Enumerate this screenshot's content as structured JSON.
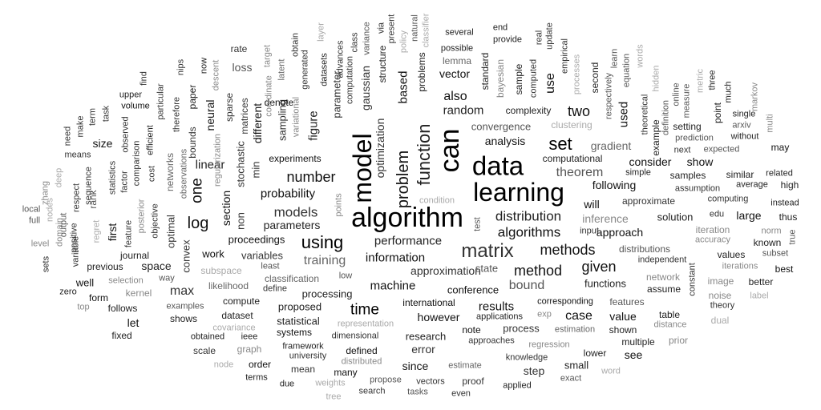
{
  "words": [
    {
      "text": "algorithm",
      "tone": "#000000"
    },
    {
      "text": "data",
      "tone": "#000000"
    },
    {
      "text": "learning",
      "tone": "#000000"
    },
    {
      "text": "model",
      "tone": "#000000"
    },
    {
      "text": "can",
      "tone": "#000000"
    },
    {
      "text": "matrix",
      "tone": "#333333"
    },
    {
      "text": "function",
      "tone": "#222222"
    },
    {
      "text": "set",
      "tone": "#000000"
    },
    {
      "text": "using",
      "tone": "#000000"
    },
    {
      "text": "problem",
      "tone": "#111111"
    },
    {
      "text": "log",
      "tone": "#111111"
    },
    {
      "text": "time",
      "tone": "#000000"
    },
    {
      "text": "number",
      "tone": "#111111"
    },
    {
      "text": "method",
      "tone": "#111111"
    },
    {
      "text": "methods",
      "tone": "#111111"
    },
    {
      "text": "algorithms",
      "tone": "#111111"
    },
    {
      "text": "distribution",
      "tone": "#222222"
    },
    {
      "text": "given",
      "tone": "#111111"
    },
    {
      "text": "one",
      "tone": "#111111"
    },
    {
      "text": "two",
      "tone": "#111111"
    },
    {
      "text": "models",
      "tone": "#333333"
    },
    {
      "text": "performance",
      "tone": "#222222"
    },
    {
      "text": "information",
      "tone": "#111111"
    },
    {
      "text": "machine",
      "tone": "#111111"
    },
    {
      "text": "results",
      "tone": "#111111"
    },
    {
      "text": "bound",
      "tone": "#555555"
    },
    {
      "text": "training",
      "tone": "#666666"
    },
    {
      "text": "theorem",
      "tone": "#555555"
    },
    {
      "text": "probability",
      "tone": "#111111"
    },
    {
      "text": "linear",
      "tone": "#222222"
    },
    {
      "text": "based",
      "tone": "#111111"
    },
    {
      "text": "also",
      "tone": "#111111"
    },
    {
      "text": "use",
      "tone": "#111111"
    },
    {
      "text": "used",
      "tone": "#111111"
    },
    {
      "text": "case",
      "tone": "#111111"
    },
    {
      "text": "max",
      "tone": "#333333"
    },
    {
      "text": "random",
      "tone": "#222222"
    },
    {
      "text": "approximation",
      "tone": "#333333"
    },
    {
      "text": "approach",
      "tone": "#111111"
    },
    {
      "text": "following",
      "tone": "#111111"
    },
    {
      "text": "parameters",
      "tone": "#222222"
    },
    {
      "text": "figure",
      "tone": "#222222"
    },
    {
      "text": "optimization",
      "tone": "#333333"
    },
    {
      "text": "inference",
      "tone": "#888888"
    },
    {
      "text": "gradient",
      "tone": "#666666"
    },
    {
      "text": "analysis",
      "tone": "#111111"
    },
    {
      "text": "convergence",
      "tone": "#555555"
    },
    {
      "text": "vector",
      "tone": "#111111"
    },
    {
      "text": "first",
      "tone": "#111111"
    },
    {
      "text": "let",
      "tone": "#111111"
    },
    {
      "text": "space",
      "tone": "#222222"
    },
    {
      "text": "value",
      "tone": "#111111"
    },
    {
      "text": "error",
      "tone": "#333333"
    },
    {
      "text": "however",
      "tone": "#111111"
    },
    {
      "text": "will",
      "tone": "#111111"
    },
    {
      "text": "consider",
      "tone": "#111111"
    },
    {
      "text": "show",
      "tone": "#111111"
    },
    {
      "text": "large",
      "tone": "#111111"
    },
    {
      "text": "solution",
      "tone": "#222222"
    },
    {
      "text": "conference",
      "tone": "#111111"
    },
    {
      "text": "proposed",
      "tone": "#222222"
    },
    {
      "text": "since",
      "tone": "#111111"
    },
    {
      "text": "step",
      "tone": "#333333"
    },
    {
      "text": "see",
      "tone": "#111111"
    },
    {
      "text": "gaussian",
      "tone": "#333333"
    },
    {
      "text": "parameter",
      "tone": "#333333"
    },
    {
      "text": "different",
      "tone": "#111111"
    },
    {
      "text": "section",
      "tone": "#111111"
    },
    {
      "text": "loss",
      "tone": "#555555"
    },
    {
      "text": "neural",
      "tone": "#111111"
    },
    {
      "text": "size",
      "tone": "#111111"
    },
    {
      "text": "work",
      "tone": "#111111"
    },
    {
      "text": "variables",
      "tone": "#333333"
    },
    {
      "text": "proceedings",
      "tone": "#111111"
    },
    {
      "text": "well",
      "tone": "#111111"
    },
    {
      "text": "computational",
      "tone": "#222222"
    },
    {
      "text": "process",
      "tone": "#333333"
    },
    {
      "text": "research",
      "tone": "#222222"
    },
    {
      "text": "functions",
      "tone": "#222222"
    },
    {
      "text": "processing",
      "tone": "#222222"
    },
    {
      "text": "state",
      "tone": "#555555"
    },
    {
      "text": "international",
      "tone": "#111111"
    },
    {
      "text": "experiments",
      "tone": "#111111"
    },
    {
      "text": "complexity",
      "tone": "#222222"
    },
    {
      "text": "clustering",
      "tone": "#aaaaaa"
    },
    {
      "text": "sample",
      "tone": "#222222"
    },
    {
      "text": "bayesian",
      "tone": "#888888"
    },
    {
      "text": "standard",
      "tone": "#222222"
    },
    {
      "text": "lemma",
      "tone": "#666666"
    },
    {
      "text": "possible",
      "tone": "#222222"
    },
    {
      "text": "several",
      "tone": "#222222"
    },
    {
      "text": "structure",
      "tone": "#222222"
    },
    {
      "text": "problems",
      "tone": "#222222"
    },
    {
      "text": "datasets",
      "tone": "#222222"
    },
    {
      "text": "sampling",
      "tone": "#333333"
    },
    {
      "text": "variational",
      "tone": "#888888"
    },
    {
      "text": "latent",
      "tone": "#666666"
    },
    {
      "text": "target",
      "tone": "#888888"
    },
    {
      "text": "denote",
      "tone": "#111111"
    },
    {
      "text": "matrices",
      "tone": "#333333"
    },
    {
      "text": "sparse",
      "tone": "#333333"
    },
    {
      "text": "stochastic",
      "tone": "#333333"
    },
    {
      "text": "non",
      "tone": "#333333"
    },
    {
      "text": "min",
      "tone": "#333333"
    },
    {
      "text": "rate",
      "tone": "#333333"
    },
    {
      "text": "paper",
      "tone": "#222222"
    },
    {
      "text": "bounds",
      "tone": "#333333"
    },
    {
      "text": "regularization",
      "tone": "#888888"
    },
    {
      "text": "descent",
      "tone": "#888888"
    },
    {
      "text": "now",
      "tone": "#222222"
    },
    {
      "text": "nips",
      "tone": "#333333"
    },
    {
      "text": "therefore",
      "tone": "#333333"
    },
    {
      "text": "observations",
      "tone": "#666666"
    },
    {
      "text": "networks",
      "tone": "#666666"
    },
    {
      "text": "optimal",
      "tone": "#333333"
    },
    {
      "text": "convex",
      "tone": "#333333"
    },
    {
      "text": "subspace",
      "tone": "#aaaaaa"
    },
    {
      "text": "likelihood",
      "tone": "#666666"
    },
    {
      "text": "compute",
      "tone": "#222222"
    },
    {
      "text": "dataset",
      "tone": "#222222"
    },
    {
      "text": "covariance",
      "tone": "#aaaaaa"
    },
    {
      "text": "graph",
      "tone": "#888888"
    },
    {
      "text": "node",
      "tone": "#aaaaaa"
    },
    {
      "text": "scale",
      "tone": "#333333"
    },
    {
      "text": "obtained",
      "tone": "#222222"
    },
    {
      "text": "shows",
      "tone": "#222222"
    },
    {
      "text": "examples",
      "tone": "#555555"
    },
    {
      "text": "way",
      "tone": "#555555"
    },
    {
      "text": "kernel",
      "tone": "#888888"
    },
    {
      "text": "selection",
      "tone": "#888888"
    },
    {
      "text": "journal",
      "tone": "#222222"
    },
    {
      "text": "previous",
      "tone": "#222222"
    },
    {
      "text": "form",
      "tone": "#111111"
    },
    {
      "text": "follows",
      "tone": "#222222"
    },
    {
      "text": "fixed",
      "tone": "#222222"
    },
    {
      "text": "top",
      "tone": "#888888"
    },
    {
      "text": "zero",
      "tone": "#222222"
    },
    {
      "text": "sets",
      "tone": "#222222"
    },
    {
      "text": "level",
      "tone": "#888888"
    },
    {
      "text": "full",
      "tone": "#555555"
    },
    {
      "text": "local",
      "tone": "#555555"
    },
    {
      "text": "zhang",
      "tone": "#888888"
    },
    {
      "text": "deep",
      "tone": "#aaaaaa"
    },
    {
      "text": "domain",
      "tone": "#888888"
    },
    {
      "text": "nodes",
      "tone": "#aaaaaa"
    },
    {
      "text": "output",
      "tone": "#555555"
    },
    {
      "text": "means",
      "tone": "#333333"
    },
    {
      "text": "need",
      "tone": "#333333"
    },
    {
      "text": "make",
      "tone": "#333333"
    },
    {
      "text": "term",
      "tone": "#333333"
    },
    {
      "text": "task",
      "tone": "#333333"
    },
    {
      "text": "respect",
      "tone": "#333333"
    },
    {
      "text": "positive",
      "tone": "#333333"
    },
    {
      "text": "variable",
      "tone": "#333333"
    },
    {
      "text": "sequence",
      "tone": "#333333"
    },
    {
      "text": "rank",
      "tone": "#555555"
    },
    {
      "text": "regret",
      "tone": "#aaaaaa"
    },
    {
      "text": "statistics",
      "tone": "#333333"
    },
    {
      "text": "observed",
      "tone": "#333333"
    },
    {
      "text": "factor",
      "tone": "#333333"
    },
    {
      "text": "posterior",
      "tone": "#888888"
    },
    {
      "text": "comparison",
      "tone": "#333333"
    },
    {
      "text": "feature",
      "tone": "#333333"
    },
    {
      "text": "upper",
      "tone": "#222222"
    },
    {
      "text": "volume",
      "tone": "#111111"
    },
    {
      "text": "particular",
      "tone": "#333333"
    },
    {
      "text": "efficient",
      "tone": "#222222"
    },
    {
      "text": "cost",
      "tone": "#333333"
    },
    {
      "text": "objective",
      "tone": "#333333"
    },
    {
      "text": "find",
      "tone": "#333333"
    },
    {
      "text": "coordinate",
      "tone": "#888888"
    },
    {
      "text": "generated",
      "tone": "#333333"
    },
    {
      "text": "obtain",
      "tone": "#333333"
    },
    {
      "text": "layer",
      "tone": "#aaaaaa"
    },
    {
      "text": "advances",
      "tone": "#333333"
    },
    {
      "text": "computation",
      "tone": "#333333"
    },
    {
      "text": "class",
      "tone": "#333333"
    },
    {
      "text": "variance",
      "tone": "#555555"
    },
    {
      "text": "via",
      "tone": "#333333"
    },
    {
      "text": "present",
      "tone": "#333333"
    },
    {
      "text": "policy",
      "tone": "#aaaaaa"
    },
    {
      "text": "natural",
      "tone": "#555555"
    },
    {
      "text": "classifier",
      "tone": "#aaaaaa"
    },
    {
      "text": "condition",
      "tone": "#aaaaaa"
    },
    {
      "text": "points",
      "tone": "#888888"
    },
    {
      "text": "test",
      "tone": "#555555"
    },
    {
      "text": "classification",
      "tone": "#666666"
    },
    {
      "text": "least",
      "tone": "#555555"
    },
    {
      "text": "define",
      "tone": "#333333"
    },
    {
      "text": "low",
      "tone": "#555555"
    },
    {
      "text": "statistical",
      "tone": "#222222"
    },
    {
      "text": "systems",
      "tone": "#111111"
    },
    {
      "text": "representation",
      "tone": "#aaaaaa"
    },
    {
      "text": "dimensional",
      "tone": "#333333"
    },
    {
      "text": "framework",
      "tone": "#222222"
    },
    {
      "text": "university",
      "tone": "#333333"
    },
    {
      "text": "mean",
      "tone": "#333333"
    },
    {
      "text": "ieee",
      "tone": "#222222"
    },
    {
      "text": "defined",
      "tone": "#111111"
    },
    {
      "text": "distributed",
      "tone": "#888888"
    },
    {
      "text": "many",
      "tone": "#111111"
    },
    {
      "text": "order",
      "tone": "#111111"
    },
    {
      "text": "terms",
      "tone": "#222222"
    },
    {
      "text": "due",
      "tone": "#222222"
    },
    {
      "text": "weights",
      "tone": "#aaaaaa"
    },
    {
      "text": "tree",
      "tone": "#aaaaaa"
    },
    {
      "text": "propose",
      "tone": "#555555"
    },
    {
      "text": "search",
      "tone": "#333333"
    },
    {
      "text": "vectors",
      "tone": "#333333"
    },
    {
      "text": "tasks",
      "tone": "#555555"
    },
    {
      "text": "proof",
      "tone": "#333333"
    },
    {
      "text": "even",
      "tone": "#333333"
    },
    {
      "text": "applied",
      "tone": "#222222"
    },
    {
      "text": "estimate",
      "tone": "#666666"
    },
    {
      "text": "note",
      "tone": "#111111"
    },
    {
      "text": "applications",
      "tone": "#222222"
    },
    {
      "text": "approaches",
      "tone": "#333333"
    },
    {
      "text": "knowledge",
      "tone": "#333333"
    },
    {
      "text": "regression",
      "tone": "#888888"
    },
    {
      "text": "estimation",
      "tone": "#666666"
    },
    {
      "text": "exp",
      "tone": "#888888"
    },
    {
      "text": "corresponding",
      "tone": "#111111"
    },
    {
      "text": "small",
      "tone": "#222222"
    },
    {
      "text": "exact",
      "tone": "#555555"
    },
    {
      "text": "lower",
      "tone": "#222222"
    },
    {
      "text": "word",
      "tone": "#aaaaaa"
    },
    {
      "text": "multiple",
      "tone": "#222222"
    },
    {
      "text": "shown",
      "tone": "#222222"
    },
    {
      "text": "features",
      "tone": "#555555"
    },
    {
      "text": "table",
      "tone": "#222222"
    },
    {
      "text": "distance",
      "tone": "#888888"
    },
    {
      "text": "prior",
      "tone": "#888888"
    },
    {
      "text": "assume",
      "tone": "#222222"
    },
    {
      "text": "network",
      "tone": "#888888"
    },
    {
      "text": "independent",
      "tone": "#333333"
    },
    {
      "text": "distributions",
      "tone": "#555555"
    },
    {
      "text": "input",
      "tone": "#333333"
    },
    {
      "text": "approximate",
      "tone": "#333333"
    },
    {
      "text": "simple",
      "tone": "#222222"
    },
    {
      "text": "samples",
      "tone": "#222222"
    },
    {
      "text": "assumption",
      "tone": "#333333"
    },
    {
      "text": "computing",
      "tone": "#333333"
    },
    {
      "text": "edu",
      "tone": "#333333"
    },
    {
      "text": "iteration",
      "tone": "#888888"
    },
    {
      "text": "accuracy",
      "tone": "#888888"
    },
    {
      "text": "constant",
      "tone": "#333333"
    },
    {
      "text": "image",
      "tone": "#888888"
    },
    {
      "text": "noise",
      "tone": "#888888"
    },
    {
      "text": "theory",
      "tone": "#333333"
    },
    {
      "text": "dual",
      "tone": "#aaaaaa"
    },
    {
      "text": "label",
      "tone": "#aaaaaa"
    },
    {
      "text": "better",
      "tone": "#222222"
    },
    {
      "text": "iterations",
      "tone": "#888888"
    },
    {
      "text": "values",
      "tone": "#222222"
    },
    {
      "text": "known",
      "tone": "#222222"
    },
    {
      "text": "norm",
      "tone": "#888888"
    },
    {
      "text": "subset",
      "tone": "#555555"
    },
    {
      "text": "best",
      "tone": "#111111"
    },
    {
      "text": "true",
      "tone": "#555555"
    },
    {
      "text": "thus",
      "tone": "#222222"
    },
    {
      "text": "instead",
      "tone": "#222222"
    },
    {
      "text": "high",
      "tone": "#222222"
    },
    {
      "text": "related",
      "tone": "#222222"
    },
    {
      "text": "average",
      "tone": "#222222"
    },
    {
      "text": "similar",
      "tone": "#222222"
    },
    {
      "text": "may",
      "tone": "#111111"
    },
    {
      "text": "multi",
      "tone": "#888888"
    },
    {
      "text": "without",
      "tone": "#222222"
    },
    {
      "text": "expected",
      "tone": "#555555"
    },
    {
      "text": "next",
      "tone": "#333333"
    },
    {
      "text": "prediction",
      "tone": "#555555"
    },
    {
      "text": "setting",
      "tone": "#222222"
    },
    {
      "text": "arxiv",
      "tone": "#555555"
    },
    {
      "text": "single",
      "tone": "#222222"
    },
    {
      "text": "point",
      "tone": "#222222"
    },
    {
      "text": "three",
      "tone": "#222222"
    },
    {
      "text": "much",
      "tone": "#222222"
    },
    {
      "text": "metric",
      "tone": "#aaaaaa"
    },
    {
      "text": "online",
      "tone": "#555555"
    },
    {
      "text": "measure",
      "tone": "#555555"
    },
    {
      "text": "definition",
      "tone": "#555555"
    },
    {
      "text": "hidden",
      "tone": "#aaaaaa"
    },
    {
      "text": "markov",
      "tone": "#888888"
    },
    {
      "text": "example",
      "tone": "#222222"
    },
    {
      "text": "theoretical",
      "tone": "#333333"
    },
    {
      "text": "words",
      "tone": "#aaaaaa"
    },
    {
      "text": "equation",
      "tone": "#555555"
    },
    {
      "text": "learn",
      "tone": "#555555"
    },
    {
      "text": "respectively",
      "tone": "#555555"
    },
    {
      "text": "second",
      "tone": "#222222"
    },
    {
      "text": "processes",
      "tone": "#aaaaaa"
    },
    {
      "text": "empirical",
      "tone": "#333333"
    },
    {
      "text": "update",
      "tone": "#333333"
    },
    {
      "text": "real",
      "tone": "#333333"
    },
    {
      "text": "computed",
      "tone": "#333333"
    },
    {
      "text": "provide",
      "tone": "#222222"
    },
    {
      "text": "end",
      "tone": "#222222"
    }
  ]
}
